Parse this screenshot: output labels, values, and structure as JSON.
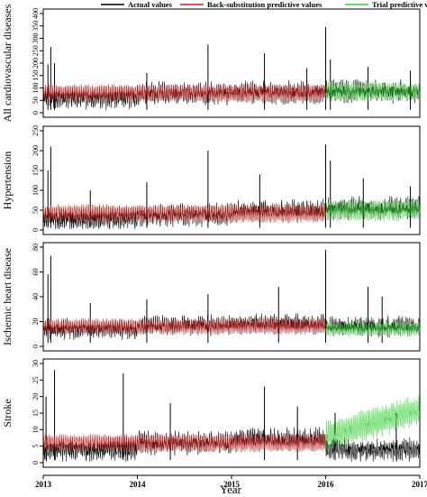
{
  "chart_data": {
    "type": "line",
    "xlabel": "Year",
    "x_ticks": [
      "2013",
      "2014",
      "2015",
      "2016",
      "2017"
    ],
    "x_range": [
      2013,
      2017
    ],
    "split_year": 2016,
    "legend": {
      "placement": "top",
      "entries": [
        {
          "label": "Actual values",
          "color": "#000000"
        },
        {
          "label": "Back-substitution predictive values",
          "color": "#cc2222"
        },
        {
          "label": "Trial predictive values",
          "color": "#33cc33"
        }
      ]
    },
    "panels": [
      {
        "ylabel": "All cardiovascular diseases",
        "ylim": [
          0,
          400
        ],
        "yticks": [
          "0",
          "50",
          "100",
          "150",
          "200",
          "250",
          "300",
          "350",
          "400"
        ],
        "actual_baseline_by_year": [
          60,
          78,
          82,
          80
        ],
        "actual_2016": 85,
        "actual_amplitude": 45,
        "back_sub_center": 80,
        "back_sub_amplitude": 38,
        "trial_center": 85,
        "trial_amplitude": 40,
        "peaks": [
          {
            "x": 2013.05,
            "y": 195
          },
          {
            "x": 2013.08,
            "y": 265
          },
          {
            "x": 2013.12,
            "y": 200
          },
          {
            "x": 2014.1,
            "y": 160
          },
          {
            "x": 2014.75,
            "y": 275
          },
          {
            "x": 2015.35,
            "y": 240
          },
          {
            "x": 2015.8,
            "y": 180
          },
          {
            "x": 2016.0,
            "y": 345
          },
          {
            "x": 2016.05,
            "y": 215
          },
          {
            "x": 2016.45,
            "y": 185
          },
          {
            "x": 2016.9,
            "y": 170
          }
        ]
      },
      {
        "ylabel": "Hypertension",
        "ylim": [
          0,
          250
        ],
        "yticks": [
          "0",
          "50",
          "100",
          "150",
          "200",
          "250"
        ],
        "actual_baseline_by_year": [
          28,
          38,
          48,
          46
        ],
        "actual_2016": 55,
        "actual_amplitude": 28,
        "back_sub_center": 42,
        "back_sub_amplitude": 25,
        "trial_center": 50,
        "trial_amplitude": 28,
        "peaks": [
          {
            "x": 2013.05,
            "y": 150
          },
          {
            "x": 2013.08,
            "y": 210
          },
          {
            "x": 2013.5,
            "y": 100
          },
          {
            "x": 2014.1,
            "y": 120
          },
          {
            "x": 2014.75,
            "y": 200
          },
          {
            "x": 2015.3,
            "y": 140
          },
          {
            "x": 2016.0,
            "y": 215
          },
          {
            "x": 2016.05,
            "y": 175
          },
          {
            "x": 2016.4,
            "y": 130
          },
          {
            "x": 2016.9,
            "y": 110
          }
        ]
      },
      {
        "ylabel": "Ischemic heart disease",
        "ylim": [
          0,
          80
        ],
        "yticks": [
          "0",
          "20",
          "40",
          "60",
          "80"
        ],
        "actual_baseline_by_year": [
          14,
          17,
          18,
          17
        ],
        "actual_2016": 16,
        "actual_amplitude": 8,
        "back_sub_center": 16,
        "back_sub_amplitude": 7,
        "trial_center": 14,
        "trial_amplitude": 6,
        "peaks": [
          {
            "x": 2013.05,
            "y": 58
          },
          {
            "x": 2013.08,
            "y": 73
          },
          {
            "x": 2013.5,
            "y": 35
          },
          {
            "x": 2014.1,
            "y": 38
          },
          {
            "x": 2014.75,
            "y": 42
          },
          {
            "x": 2015.5,
            "y": 48
          },
          {
            "x": 2016.0,
            "y": 78
          },
          {
            "x": 2016.45,
            "y": 48
          },
          {
            "x": 2016.6,
            "y": 40
          }
        ]
      },
      {
        "ylabel": "Stroke",
        "ylim": [
          0,
          30
        ],
        "yticks": [
          "0",
          "5",
          "10",
          "15",
          "20",
          "25",
          "30"
        ],
        "actual_baseline_by_year": [
          4,
          6,
          7,
          6
        ],
        "actual_2016": 4,
        "actual_amplitude": 3.5,
        "back_sub_center": 6,
        "back_sub_amplitude": 3,
        "trial_center_start": 8,
        "trial_center_end": 16,
        "trial_amplitude": 5,
        "peaks": [
          {
            "x": 2013.03,
            "y": 20
          },
          {
            "x": 2013.12,
            "y": 28
          },
          {
            "x": 2013.85,
            "y": 27
          },
          {
            "x": 2014.35,
            "y": 18
          },
          {
            "x": 2015.35,
            "y": 23
          },
          {
            "x": 2015.7,
            "y": 17
          },
          {
            "x": 2016.1,
            "y": 15
          },
          {
            "x": 2016.75,
            "y": 15
          }
        ]
      }
    ]
  }
}
